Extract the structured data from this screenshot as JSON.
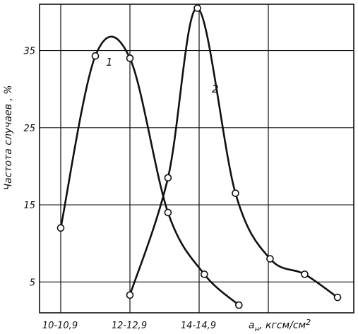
{
  "chart_data": {
    "type": "line",
    "xlabel_parts": {
      "symbol": "a",
      "subscript": "н",
      "unit": ", кгсм/см",
      "superscript": "2"
    },
    "ylabel": "Частота случаев , %",
    "x_ticks": [
      {
        "value": 10.45,
        "label": "10-10,9"
      },
      {
        "value": 12.45,
        "label": "12-12,9"
      },
      {
        "value": 14.45,
        "label": "14-14,9"
      }
    ],
    "x_grid": [
      10.45,
      12.45,
      14.45,
      16.45
    ],
    "xlim": [
      9.9,
      18.45
    ],
    "y_ticks": [
      5,
      15,
      25,
      35
    ],
    "ylim": [
      1,
      41
    ],
    "grid": true,
    "series": [
      {
        "name": "1",
        "points": [
          {
            "x": 10.45,
            "y": 12
          },
          {
            "x": 11.45,
            "y": 34.3
          },
          {
            "x": 12.45,
            "y": 34
          },
          {
            "x": 13.55,
            "y": 14
          },
          {
            "x": 14.6,
            "y": 6
          },
          {
            "x": 15.6,
            "y": 2
          }
        ]
      },
      {
        "name": "2",
        "points": [
          {
            "x": 12.45,
            "y": 3.3
          },
          {
            "x": 13.55,
            "y": 18.5
          },
          {
            "x": 14.4,
            "y": 40.5
          },
          {
            "x": 15.5,
            "y": 16.5
          },
          {
            "x": 16.5,
            "y": 8
          },
          {
            "x": 17.5,
            "y": 6
          },
          {
            "x": 18.45,
            "y": 3
          }
        ]
      }
    ]
  }
}
